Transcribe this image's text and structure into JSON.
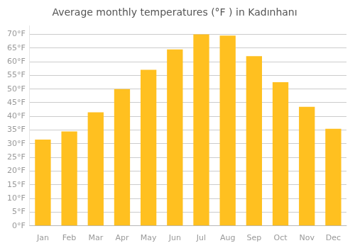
{
  "chart_data": {
    "type": "bar",
    "title": "Average monthly temperatures (°F ) in Kadınhanı",
    "categories": [
      "Jan",
      "Feb",
      "Mar",
      "Apr",
      "May",
      "Jun",
      "Jul",
      "Aug",
      "Sep",
      "Oct",
      "Nov",
      "Dec"
    ],
    "values": [
      31.5,
      34.5,
      41.5,
      50,
      57,
      64.5,
      70,
      69.5,
      62,
      52.5,
      43.5,
      35.5
    ],
    "color": "#FFC020",
    "ylim": [
      0,
      73
    ],
    "yticks": [
      {
        "value": 0,
        "label": "0°F"
      },
      {
        "value": 5,
        "label": "5°F"
      },
      {
        "value": 10,
        "label": "10°F"
      },
      {
        "value": 15,
        "label": "15°F"
      },
      {
        "value": 20,
        "label": "20°F"
      },
      {
        "value": 25,
        "label": "25°F"
      },
      {
        "value": 30,
        "label": "30°F"
      },
      {
        "value": 35,
        "label": "35°F"
      },
      {
        "value": 40,
        "label": "40°F"
      },
      {
        "value": 45,
        "label": "45°F"
      },
      {
        "value": 50,
        "label": "50°F"
      },
      {
        "value": 55,
        "label": "55°F"
      },
      {
        "value": 60,
        "label": "60°F"
      },
      {
        "value": 65,
        "label": "65°F"
      },
      {
        "value": 70,
        "label": "70°F"
      }
    ],
    "grid": true
  }
}
